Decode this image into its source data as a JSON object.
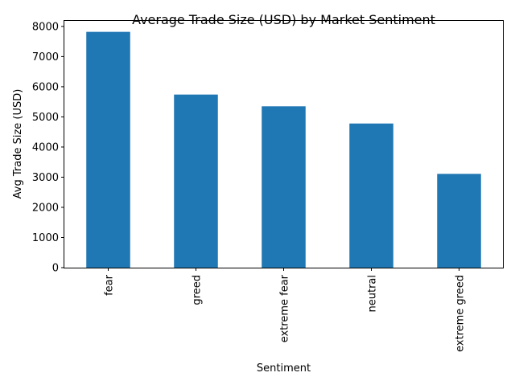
{
  "chart_data": {
    "type": "bar",
    "title": "Average Trade Size (USD) by Market Sentiment",
    "xlabel": "Sentiment",
    "ylabel": "Avg Trade Size (USD)",
    "categories": [
      "fear",
      "greed",
      "extreme fear",
      "neutral",
      "extreme greed"
    ],
    "values": [
      7820,
      5740,
      5350,
      4780,
      3110
    ],
    "ylim": [
      0,
      8210
    ],
    "yticks": [
      0,
      1000,
      2000,
      3000,
      4000,
      5000,
      6000,
      7000,
      8000
    ],
    "ytick_labels": [
      "0",
      "1000",
      "2000",
      "3000",
      "4000",
      "5000",
      "6000",
      "7000",
      "8000"
    ],
    "bar_color": "#1f77b4",
    "grid": false,
    "legend": "none"
  }
}
